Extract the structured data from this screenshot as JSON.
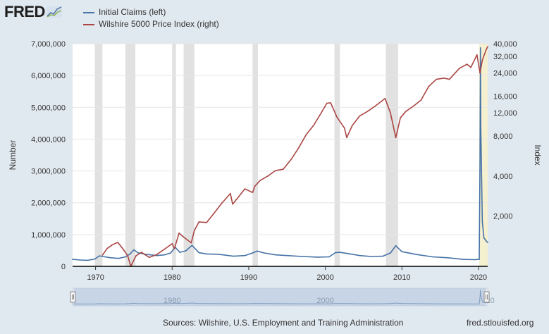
{
  "header": {
    "logo_text": "FRED",
    "logo_icon": "fred-chart-icon"
  },
  "colors": {
    "background": "#e1e9f0",
    "plot_background": "#ffffff",
    "recession": "#e1e1e1",
    "claims": "#4572a7",
    "wilshire": "#aa4643",
    "highlight": "#f5f0d0",
    "navigator": "#b9cbe0"
  },
  "chart_data": {
    "type": "line",
    "xlim": [
      1967,
      2021.2
    ],
    "x_ticks": [
      1970,
      1980,
      1990,
      2000,
      2010,
      2020
    ],
    "recessions": [
      [
        1969.9,
        1970.9
      ],
      [
        1973.9,
        1975.2
      ],
      [
        1980.0,
        1980.5
      ],
      [
        1981.5,
        1982.9
      ],
      [
        1990.5,
        1991.2
      ],
      [
        2001.2,
        2001.9
      ],
      [
        2007.9,
        2009.5
      ]
    ],
    "highlight_range": [
      2020.1,
      2021.2
    ],
    "left_axis": {
      "label": "Number",
      "ylim": [
        0,
        7000000
      ],
      "ticks": [
        0,
        1000000,
        2000000,
        3000000,
        4000000,
        5000000,
        6000000,
        7000000
      ],
      "tick_labels": [
        "0",
        "1,000,000",
        "2,000,000",
        "3,000,000",
        "4,000,000",
        "5,000,000",
        "6,000,000",
        "7,000,000"
      ]
    },
    "right_axis": {
      "label": "Index",
      "scale": "log",
      "ylim": [
        830,
        40000
      ],
      "ticks": [
        2000,
        4000,
        8000,
        12000,
        16000,
        24000,
        32000,
        40000
      ],
      "tick_labels": [
        "2,000",
        "4,000",
        "8,000",
        "12,000",
        "16,000",
        "24,000",
        "32,000",
        "40,000"
      ]
    },
    "series": [
      {
        "name": "Initial Claims (left)",
        "axis": "left",
        "x": [
          1967.0,
          1968.0,
          1969.0,
          1969.9,
          1970.5,
          1971.2,
          1972.0,
          1973.0,
          1973.9,
          1974.5,
          1975.0,
          1975.5,
          1976.5,
          1978.0,
          1979.0,
          1979.8,
          1980.4,
          1981.0,
          1981.8,
          1982.6,
          1983.5,
          1984.5,
          1986.0,
          1988.0,
          1989.5,
          1990.5,
          1991.1,
          1992.0,
          1993.5,
          1995.0,
          1997.0,
          1999.0,
          2000.5,
          2001.3,
          2001.9,
          2003.0,
          2004.5,
          2006.0,
          2007.5,
          2008.5,
          2009.2,
          2010.0,
          2012.0,
          2014.0,
          2016.0,
          2018.0,
          2019.5,
          2020.1,
          2020.2,
          2020.25,
          2020.3,
          2020.5,
          2020.7,
          2021.0,
          2021.2
        ],
        "y": [
          220000,
          200000,
          190000,
          230000,
          330000,
          300000,
          270000,
          250000,
          300000,
          390000,
          520000,
          430000,
          380000,
          340000,
          360000,
          420000,
          600000,
          440000,
          490000,
          660000,
          430000,
          390000,
          380000,
          320000,
          340000,
          420000,
          480000,
          420000,
          360000,
          340000,
          310000,
          290000,
          300000,
          430000,
          440000,
          400000,
          340000,
          310000,
          320000,
          420000,
          650000,
          460000,
          370000,
          300000,
          270000,
          220000,
          210000,
          220000,
          3300000,
          6870000,
          4400000,
          1400000,
          900000,
          800000,
          750000
        ]
      },
      {
        "name": "Wilshire 5000 Price Index (right)",
        "axis": "right",
        "x": [
          1970.9,
          1971.5,
          1972.2,
          1972.9,
          1973.5,
          1974.2,
          1974.6,
          1974.8,
          1975.3,
          1976.0,
          1977.0,
          1978.0,
          1979.0,
          1980.0,
          1980.3,
          1980.9,
          1981.5,
          1982.5,
          1982.9,
          1983.5,
          1984.5,
          1985.5,
          1986.5,
          1987.6,
          1987.9,
          1988.5,
          1989.5,
          1990.5,
          1990.8,
          1991.5,
          1992.5,
          1993.5,
          1994.5,
          1995.5,
          1996.5,
          1997.5,
          1998.5,
          1999.5,
          2000.2,
          2000.7,
          2001.5,
          2002.5,
          2002.8,
          2003.5,
          2004.5,
          2005.5,
          2006.5,
          2007.8,
          2008.5,
          2009.2,
          2009.8,
          2010.5,
          2011.5,
          2012.5,
          2013.5,
          2014.5,
          2015.5,
          2016.2,
          2017.5,
          2018.5,
          2019.0,
          2019.8,
          2020.2,
          2020.5,
          2021.0,
          2021.2
        ],
        "y": [
          1010,
          1130,
          1210,
          1260,
          1140,
          1000,
          830,
          880,
          1000,
          1060,
          970,
          1020,
          1120,
          1230,
          1130,
          1480,
          1380,
          1250,
          1550,
          1800,
          1780,
          2100,
          2500,
          2950,
          2450,
          2700,
          3200,
          3000,
          3350,
          3700,
          4000,
          4400,
          4500,
          5300,
          6500,
          8200,
          9700,
          12100,
          14200,
          14300,
          11200,
          9200,
          7800,
          9600,
          11400,
          12300,
          13500,
          15400,
          12000,
          7800,
          11000,
          12300,
          13500,
          15000,
          19000,
          21500,
          22000,
          21500,
          26000,
          28000,
          26500,
          33000,
          24000,
          30000,
          36000,
          38000
        ]
      }
    ],
    "navigator": {
      "labels": [
        "1980",
        "2000",
        "20"
      ]
    }
  },
  "footer": {
    "source": "Sources: Wilshire, U.S. Employment and Training Administration",
    "site": "fred.stlouisfed.org"
  }
}
